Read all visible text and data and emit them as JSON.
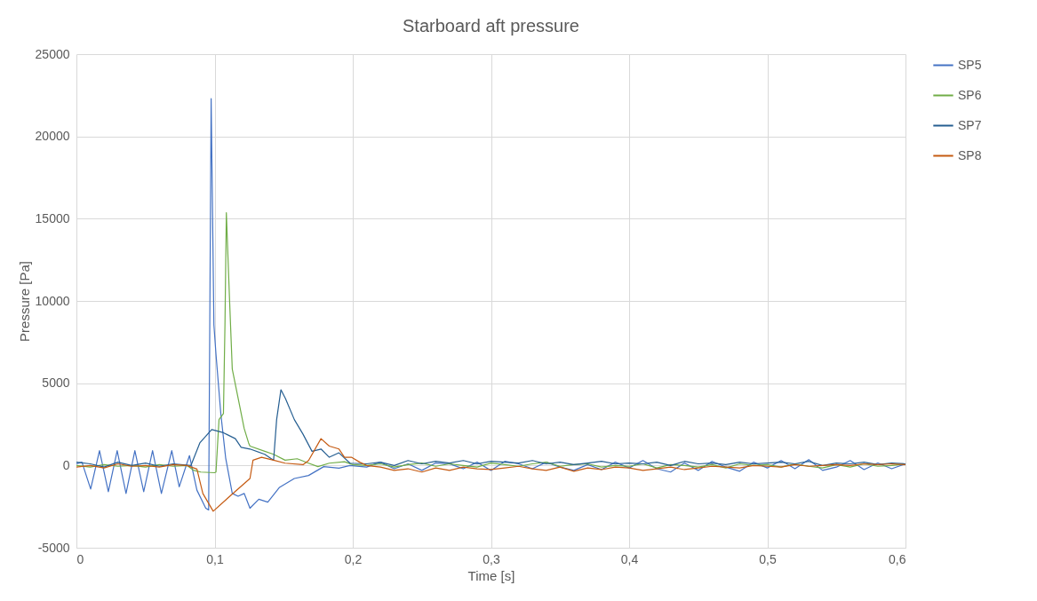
{
  "chart_data": {
    "type": "line",
    "title": "Starboard aft pressure",
    "xlabel": "Time [s]",
    "ylabel": "Pressure [Pa]",
    "xlim": [
      0,
      0.6
    ],
    "xticks": [
      0,
      {
        "value": 0.1,
        "label": "0,1"
      },
      {
        "value": 0.2,
        "label": "0,2"
      },
      {
        "value": 0.3,
        "label": "0,3"
      },
      {
        "value": 0.4,
        "label": "0,4"
      },
      {
        "value": 0.5,
        "label": "0,5"
      },
      {
        "value": 0.6,
        "label": "0,6"
      }
    ],
    "ylim": [
      -5000,
      25000
    ],
    "yticks": [
      -5000,
      0,
      5000,
      10000,
      15000,
      20000,
      25000
    ],
    "grid": true,
    "legend": "right",
    "marker": "none",
    "line_style": "solid",
    "series": [
      {
        "name": "SP5",
        "color": "#4472c4",
        "x": [
          0,
          0.004,
          0.0103,
          0.0167,
          0.0231,
          0.0295,
          0.0359,
          0.0423,
          0.0487,
          0.0551,
          0.0615,
          0.069,
          0.0744,
          0.0818,
          0.0872,
          0.0936,
          0.0957,
          0.0975,
          0.0995,
          0.101,
          0.1045,
          0.108,
          0.1128,
          0.117,
          0.1214,
          0.1256,
          0.132,
          0.1385,
          0.147,
          0.1577,
          0.168,
          0.179,
          0.19,
          0.198,
          0.21,
          0.22,
          0.23,
          0.24,
          0.25,
          0.26,
          0.27,
          0.28,
          0.29,
          0.3,
          0.31,
          0.32,
          0.33,
          0.34,
          0.35,
          0.36,
          0.37,
          0.38,
          0.39,
          0.4,
          0.41,
          0.42,
          0.43,
          0.44,
          0.45,
          0.46,
          0.47,
          0.48,
          0.49,
          0.5,
          0.51,
          0.52,
          0.53,
          0.54,
          0.55,
          0.56,
          0.57,
          0.58,
          0.59,
          0.6
        ],
        "values": [
          100,
          200,
          -1430,
          900,
          -1600,
          900,
          -1700,
          900,
          -1600,
          900,
          -1700,
          900,
          -1300,
          600,
          -1500,
          -2600,
          -2700,
          22300,
          8540,
          6760,
          3150,
          460,
          -1700,
          -1870,
          -1700,
          -2600,
          -2050,
          -2230,
          -1330,
          -790,
          -610,
          -70,
          -160,
          0,
          -100,
          200,
          -200,
          100,
          -300,
          150,
          100,
          -200,
          200,
          -300,
          250,
          100,
          -200,
          200,
          -100,
          -300,
          50,
          -250,
          200,
          -150,
          300,
          -200,
          -400,
          150,
          -300,
          250,
          -100,
          -350,
          200,
          -150,
          300,
          -200,
          350,
          -300,
          -100,
          300,
          -250,
          150,
          -200,
          100
        ]
      },
      {
        "name": "SP6",
        "color": "#70ad47",
        "x": [
          0,
          0.01,
          0.02,
          0.03,
          0.04,
          0.05,
          0.06,
          0.07,
          0.08,
          0.085,
          0.09,
          0.1,
          0.101,
          0.1032,
          0.1064,
          0.1075,
          0.1085,
          0.1107,
          0.1128,
          0.1171,
          0.1214,
          0.1246,
          0.1256,
          0.1363,
          0.1427,
          0.151,
          0.1598,
          0.168,
          0.1748,
          0.183,
          0.194,
          0.2,
          0.21,
          0.22,
          0.23,
          0.24,
          0.25,
          0.26,
          0.27,
          0.28,
          0.29,
          0.3,
          0.31,
          0.32,
          0.33,
          0.34,
          0.35,
          0.36,
          0.37,
          0.38,
          0.39,
          0.4,
          0.41,
          0.42,
          0.43,
          0.44,
          0.45,
          0.46,
          0.47,
          0.48,
          0.49,
          0.5,
          0.51,
          0.52,
          0.53,
          0.54,
          0.55,
          0.56,
          0.57,
          0.58,
          0.59,
          0.6
        ],
        "values": [
          0,
          -100,
          50,
          -50,
          0,
          -100,
          50,
          -50,
          0,
          -300,
          -400,
          -440,
          -400,
          2790,
          3150,
          8540,
          15370,
          10340,
          5850,
          4060,
          2250,
          1370,
          1180,
          860,
          680,
          320,
          410,
          140,
          -70,
          140,
          230,
          50,
          0,
          100,
          -100,
          50,
          150,
          -50,
          100,
          0,
          -100,
          150,
          50,
          -50,
          100,
          200,
          -50,
          50,
          100,
          -100,
          0,
          -50,
          100,
          -150,
          50,
          0,
          -100,
          50,
          -150,
          100,
          0,
          50,
          -100,
          100,
          -50,
          -150,
          50,
          -100,
          100,
          -50,
          0,
          100
        ]
      },
      {
        "name": "SP7",
        "color": "#255e91",
        "x": [
          0,
          0.01,
          0.02,
          0.03,
          0.04,
          0.05,
          0.06,
          0.07,
          0.0829,
          0.0893,
          0.0979,
          0.1064,
          0.115,
          0.1192,
          0.1256,
          0.1363,
          0.1427,
          0.1449,
          0.148,
          0.1513,
          0.1577,
          0.164,
          0.1705,
          0.177,
          0.183,
          0.19,
          0.198,
          0.21,
          0.22,
          0.23,
          0.24,
          0.25,
          0.26,
          0.27,
          0.28,
          0.29,
          0.3,
          0.31,
          0.32,
          0.33,
          0.34,
          0.35,
          0.36,
          0.37,
          0.38,
          0.39,
          0.4,
          0.41,
          0.42,
          0.43,
          0.44,
          0.45,
          0.46,
          0.47,
          0.48,
          0.49,
          0.5,
          0.51,
          0.52,
          0.53,
          0.54,
          0.55,
          0.56,
          0.57,
          0.58,
          0.59,
          0.6
        ],
        "values": [
          200,
          100,
          -100,
          200,
          0,
          150,
          -50,
          100,
          0,
          1370,
          2180,
          1990,
          1630,
          1100,
          1000,
          680,
          320,
          2790,
          4600,
          4060,
          2790,
          1900,
          860,
          1000,
          500,
          770,
          140,
          100,
          200,
          0,
          300,
          100,
          250,
          150,
          300,
          100,
          250,
          200,
          150,
          300,
          100,
          200,
          50,
          150,
          250,
          100,
          150,
          100,
          200,
          0,
          250,
          100,
          150,
          50,
          200,
          100,
          150,
          200,
          100,
          250,
          0,
          150,
          100,
          200,
          50,
          150,
          100
        ]
      },
      {
        "name": "SP8",
        "color": "#c55a11",
        "x": [
          0,
          0.01,
          0.02,
          0.03,
          0.04,
          0.05,
          0.06,
          0.07,
          0.08,
          0.0872,
          0.0915,
          0.099,
          0.111,
          0.1256,
          0.1278,
          0.134,
          0.1427,
          0.151,
          0.164,
          0.168,
          0.177,
          0.183,
          0.19,
          0.194,
          0.199,
          0.205,
          0.21,
          0.22,
          0.23,
          0.24,
          0.25,
          0.26,
          0.27,
          0.28,
          0.29,
          0.3,
          0.31,
          0.32,
          0.33,
          0.34,
          0.35,
          0.36,
          0.37,
          0.38,
          0.39,
          0.4,
          0.41,
          0.42,
          0.43,
          0.44,
          0.45,
          0.46,
          0.47,
          0.48,
          0.49,
          0.5,
          0.51,
          0.52,
          0.53,
          0.54,
          0.55,
          0.56,
          0.57,
          0.58,
          0.59,
          0.6
        ],
        "values": [
          -100,
          0,
          -150,
          100,
          -50,
          0,
          -100,
          50,
          0,
          -220,
          -1700,
          -2780,
          -1870,
          -790,
          320,
          500,
          320,
          140,
          50,
          300,
          1630,
          1180,
          1000,
          500,
          500,
          200,
          0,
          -100,
          -300,
          -200,
          -400,
          -150,
          -300,
          -100,
          -200,
          -250,
          -150,
          -50,
          -200,
          -300,
          -100,
          -350,
          -150,
          -250,
          -100,
          -150,
          -300,
          -200,
          -100,
          -250,
          -150,
          -50,
          -100,
          -150,
          0,
          -50,
          -100,
          50,
          -50,
          0,
          50,
          0,
          100,
          50,
          100,
          50
        ]
      }
    ]
  }
}
